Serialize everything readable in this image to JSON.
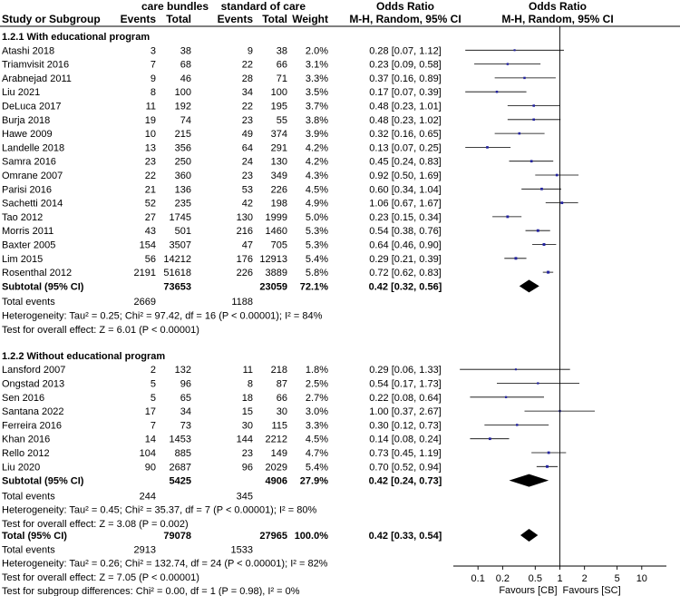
{
  "header": {
    "group_cb": "care bundles",
    "group_sc": "standard of care",
    "col_study": "Study or Subgroup",
    "col_events": "Events",
    "col_total": "Total",
    "col_weight": "Weight",
    "col_or": "Odds Ratio",
    "col_or_method": "M-H, Random, 95% CI",
    "plot_title": "Odds Ratio",
    "plot_method": "M-H, Random, 95% CI"
  },
  "chart_data": {
    "type": "forest",
    "x_scale": "log",
    "xlim": [
      0.05,
      20
    ],
    "null_line": 1,
    "ticks": [
      {
        "value": 0.1,
        "label": "0.1"
      },
      {
        "value": 0.2,
        "label": "0.2"
      },
      {
        "value": 0.5,
        "label": "0.5"
      },
      {
        "value": 1,
        "label": "1"
      },
      {
        "value": 2,
        "label": "2"
      },
      {
        "value": 5,
        "label": "5"
      },
      {
        "value": 10,
        "label": "10"
      }
    ],
    "favours_left": "Favours [CB]",
    "favours_right": "Favours [SC]",
    "subgroups": [
      {
        "title": "1.2.1 With educational program",
        "studies": [
          {
            "study": "Atashi 2018",
            "e1": "3",
            "n1": "38",
            "e2": "9",
            "n2": "38",
            "weight": "2.0%",
            "ci_text": "0.28 [0.07, 1.12]",
            "or": 0.28,
            "lo": 0.07,
            "hi": 1.12
          },
          {
            "study": "Triamvisit 2016",
            "e1": "7",
            "n1": "68",
            "e2": "22",
            "n2": "66",
            "weight": "3.1%",
            "ci_text": "0.23 [0.09, 0.58]",
            "or": 0.23,
            "lo": 0.09,
            "hi": 0.58
          },
          {
            "study": "Arabnejad 2011",
            "e1": "9",
            "n1": "46",
            "e2": "28",
            "n2": "71",
            "weight": "3.3%",
            "ci_text": "0.37 [0.16, 0.89]",
            "or": 0.37,
            "lo": 0.16,
            "hi": 0.89
          },
          {
            "study": "Liu 2021",
            "e1": "8",
            "n1": "100",
            "e2": "34",
            "n2": "100",
            "weight": "3.5%",
            "ci_text": "0.17 [0.07, 0.39]",
            "or": 0.17,
            "lo": 0.07,
            "hi": 0.39
          },
          {
            "study": "DeLuca 2017",
            "e1": "11",
            "n1": "192",
            "e2": "22",
            "n2": "195",
            "weight": "3.7%",
            "ci_text": "0.48 [0.23, 1.01]",
            "or": 0.48,
            "lo": 0.23,
            "hi": 1.01
          },
          {
            "study": "Burja 2018",
            "e1": "19",
            "n1": "74",
            "e2": "23",
            "n2": "55",
            "weight": "3.8%",
            "ci_text": "0.48 [0.23, 1.02]",
            "or": 0.48,
            "lo": 0.23,
            "hi": 1.02
          },
          {
            "study": "Hawe 2009",
            "e1": "10",
            "n1": "215",
            "e2": "49",
            "n2": "374",
            "weight": "3.9%",
            "ci_text": "0.32 [0.16, 0.65]",
            "or": 0.32,
            "lo": 0.16,
            "hi": 0.65
          },
          {
            "study": "Landelle 2018",
            "e1": "13",
            "n1": "356",
            "e2": "64",
            "n2": "291",
            "weight": "4.2%",
            "ci_text": "0.13 [0.07, 0.25]",
            "or": 0.13,
            "lo": 0.07,
            "hi": 0.25
          },
          {
            "study": "Samra 2016",
            "e1": "23",
            "n1": "250",
            "e2": "24",
            "n2": "130",
            "weight": "4.2%",
            "ci_text": "0.45 [0.24, 0.83]",
            "or": 0.45,
            "lo": 0.24,
            "hi": 0.83
          },
          {
            "study": "Omrane 2007",
            "e1": "22",
            "n1": "360",
            "e2": "23",
            "n2": "349",
            "weight": "4.3%",
            "ci_text": "0.92 [0.50, 1.69]",
            "or": 0.92,
            "lo": 0.5,
            "hi": 1.69
          },
          {
            "study": "Parisi 2016",
            "e1": "21",
            "n1": "136",
            "e2": "53",
            "n2": "226",
            "weight": "4.5%",
            "ci_text": "0.60 [0.34, 1.04]",
            "or": 0.6,
            "lo": 0.34,
            "hi": 1.04
          },
          {
            "study": "Sachetti 2014",
            "e1": "52",
            "n1": "235",
            "e2": "42",
            "n2": "198",
            "weight": "4.9%",
            "ci_text": "1.06 [0.67, 1.67]",
            "or": 1.06,
            "lo": 0.67,
            "hi": 1.67
          },
          {
            "study": "Tao 2012",
            "e1": "27",
            "n1": "1745",
            "e2": "130",
            "n2": "1999",
            "weight": "5.0%",
            "ci_text": "0.23 [0.15, 0.34]",
            "or": 0.23,
            "lo": 0.15,
            "hi": 0.34
          },
          {
            "study": "Morris 2011",
            "e1": "43",
            "n1": "501",
            "e2": "216",
            "n2": "1460",
            "weight": "5.3%",
            "ci_text": "0.54 [0.38, 0.76]",
            "or": 0.54,
            "lo": 0.38,
            "hi": 0.76
          },
          {
            "study": "Baxter 2005",
            "e1": "154",
            "n1": "3507",
            "e2": "47",
            "n2": "705",
            "weight": "5.3%",
            "ci_text": "0.64 [0.46, 0.90]",
            "or": 0.64,
            "lo": 0.46,
            "hi": 0.9
          },
          {
            "study": "Lim 2015",
            "e1": "56",
            "n1": "14212",
            "e2": "176",
            "n2": "12913",
            "weight": "5.4%",
            "ci_text": "0.29 [0.21, 0.39]",
            "or": 0.29,
            "lo": 0.21,
            "hi": 0.39
          },
          {
            "study": "Rosenthal 2012",
            "e1": "2191",
            "n1": "51618",
            "e2": "226",
            "n2": "3889",
            "weight": "5.8%",
            "ci_text": "0.72 [0.62, 0.83]",
            "or": 0.72,
            "lo": 0.62,
            "hi": 0.83
          }
        ],
        "subtotal": {
          "label": "Subtotal (95% CI)",
          "n1": "73653",
          "n2": "23059",
          "weight": "72.1%",
          "ci_text": "0.42 [0.32, 0.56]",
          "or": 0.42,
          "lo": 0.32,
          "hi": 0.56
        },
        "total_events": {
          "label": "Total events",
          "e1": "2669",
          "e2": "1188"
        },
        "heterogeneity": "Heterogeneity: Tau² = 0.25; Chi² = 97.42, df = 16 (P < 0.00001); I² = 84%",
        "overall_effect": "Test for overall effect: Z = 6.01 (P < 0.00001)"
      },
      {
        "title": "1.2.2 Without educational program",
        "studies": [
          {
            "study": "Lansford 2007",
            "e1": "2",
            "n1": "132",
            "e2": "11",
            "n2": "218",
            "weight": "1.8%",
            "ci_text": "0.29 [0.06, 1.33]",
            "or": 0.29,
            "lo": 0.06,
            "hi": 1.33
          },
          {
            "study": "Ongstad 2013",
            "e1": "5",
            "n1": "96",
            "e2": "8",
            "n2": "87",
            "weight": "2.5%",
            "ci_text": "0.54 [0.17, 1.73]",
            "or": 0.54,
            "lo": 0.17,
            "hi": 1.73
          },
          {
            "study": "Sen 2016",
            "e1": "5",
            "n1": "65",
            "e2": "18",
            "n2": "66",
            "weight": "2.7%",
            "ci_text": "0.22 [0.08, 0.64]",
            "or": 0.22,
            "lo": 0.08,
            "hi": 0.64
          },
          {
            "study": "Santana 2022",
            "e1": "17",
            "n1": "34",
            "e2": "15",
            "n2": "30",
            "weight": "3.0%",
            "ci_text": "1.00 [0.37, 2.67]",
            "or": 1.0,
            "lo": 0.37,
            "hi": 2.67
          },
          {
            "study": "Ferreira 2016",
            "e1": "7",
            "n1": "73",
            "e2": "30",
            "n2": "115",
            "weight": "3.3%",
            "ci_text": "0.30 [0.12, 0.73]",
            "or": 0.3,
            "lo": 0.12,
            "hi": 0.73
          },
          {
            "study": "Khan 2016",
            "e1": "14",
            "n1": "1453",
            "e2": "144",
            "n2": "2212",
            "weight": "4.5%",
            "ci_text": "0.14 [0.08, 0.24]",
            "or": 0.14,
            "lo": 0.08,
            "hi": 0.24
          },
          {
            "study": "Rello 2012",
            "e1": "104",
            "n1": "885",
            "e2": "23",
            "n2": "149",
            "weight": "4.7%",
            "ci_text": "0.73 [0.45, 1.19]",
            "or": 0.73,
            "lo": 0.45,
            "hi": 1.19
          },
          {
            "study": "Liu 2020",
            "e1": "90",
            "n1": "2687",
            "e2": "96",
            "n2": "2029",
            "weight": "5.4%",
            "ci_text": "0.70 [0.52, 0.94]",
            "or": 0.7,
            "lo": 0.52,
            "hi": 0.94
          }
        ],
        "subtotal": {
          "label": "Subtotal (95% CI)",
          "n1": "5425",
          "n2": "4906",
          "weight": "27.9%",
          "ci_text": "0.42 [0.24, 0.73]",
          "or": 0.42,
          "lo": 0.24,
          "hi": 0.73
        },
        "total_events": {
          "label": "Total events",
          "e1": "244",
          "e2": "345"
        },
        "heterogeneity": "Heterogeneity: Tau² = 0.45; Chi² = 35.37, df = 7 (P < 0.00001); I² = 80%",
        "overall_effect": "Test for overall effect: Z = 3.08 (P = 0.002)"
      }
    ],
    "overall": {
      "label": "Total (95% CI)",
      "n1": "79078",
      "n2": "27965",
      "weight": "100.0%",
      "ci_text": "0.42 [0.33, 0.54]",
      "or": 0.42,
      "lo": 0.33,
      "hi": 0.54,
      "total_events": {
        "label": "Total events",
        "e1": "2913",
        "e2": "1533"
      },
      "heterogeneity": "Heterogeneity: Tau² = 0.26; Chi² = 132.74, df = 24 (P < 0.00001); I² = 82%",
      "overall_effect": "Test for overall effect: Z = 7.05 (P < 0.00001)",
      "subgroup_diff": "Test for subgroup differences: Chi² = 0.00, df = 1 (P = 0.98), I² = 0%"
    },
    "colors": {
      "square": "#2323a0",
      "diamond": "#000000",
      "line": "#000000"
    }
  }
}
